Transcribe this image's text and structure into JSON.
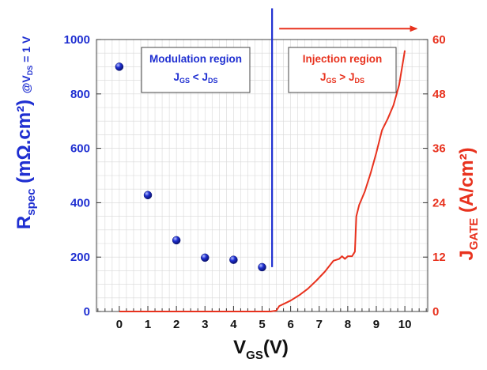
{
  "colors": {
    "left_axis": "#1f2fd1",
    "right_axis": "#e8321e",
    "grid": "#d8d8d8",
    "frame": "#444444"
  },
  "labels": {
    "y_left_main": "R",
    "y_left_sub": "spec",
    "y_left_unit": "(mΩ.cm²)",
    "y_left_cond": "@V",
    "y_left_cond_sub": "DS",
    "y_left_cond_tail": "= 1 V",
    "y_right_main": "J",
    "y_right_sub": "GATE",
    "y_right_unit": "(A/cm²)",
    "x_main": "V",
    "x_sub": "GS",
    "x_unit": "(V)"
  },
  "annotations": {
    "modulation": {
      "title": "Modulation region",
      "cond_a": "J",
      "cond_a_sub": "GS",
      "cond_op": "<",
      "cond_b": "J",
      "cond_b_sub": "DS"
    },
    "injection": {
      "title": "Injection region",
      "cond_a": "J",
      "cond_a_sub": "GS",
      "cond_op": ">",
      "cond_b": "J",
      "cond_b_sub": "DS"
    }
  },
  "chart_data": {
    "type": "scatter",
    "grid": true,
    "x_ticks": [
      0,
      1,
      2,
      3,
      4,
      5,
      6,
      7,
      8,
      9,
      10
    ],
    "xlim": [
      -0.8,
      10.8
    ],
    "y_left": {
      "ticks": [
        0,
        200,
        400,
        600,
        800,
        1000
      ],
      "ylim": [
        0,
        1000
      ]
    },
    "y_right": {
      "ticks": [
        0,
        12,
        24,
        36,
        48,
        60
      ],
      "ylim": [
        0,
        60
      ]
    },
    "series": [
      {
        "axis": "left",
        "kind": "scatter",
        "x": [
          0,
          1,
          2,
          3,
          4,
          5
        ],
        "y": [
          900,
          428,
          262,
          198,
          190,
          163
        ]
      },
      {
        "axis": "right",
        "kind": "line",
        "x": [
          0,
          5.3,
          5.5,
          5.6,
          5.8,
          6.0,
          6.3,
          6.6,
          6.9,
          7.2,
          7.5,
          7.7,
          7.8,
          7.9,
          8.0,
          8.15,
          8.25,
          8.3,
          8.4,
          8.6,
          8.8,
          9.0,
          9.2,
          9.4,
          9.6,
          9.8,
          10.0
        ],
        "y": [
          0,
          0,
          0.2,
          1.2,
          1.8,
          2.4,
          3.6,
          5.0,
          6.8,
          8.8,
          11.2,
          11.6,
          12.2,
          11.6,
          12.2,
          12.2,
          13.2,
          21.0,
          23.5,
          26.5,
          30.5,
          35.0,
          40.0,
          42.5,
          45.5,
          50.0,
          57.6
        ]
      }
    ],
    "dividers": [
      {
        "kind": "vertical_line",
        "x": 5.35,
        "y_from": 163,
        "y_to": 1115
      },
      {
        "kind": "arrow",
        "x_from": 5.6,
        "x_to": 10.4,
        "y": 1040
      }
    ]
  }
}
